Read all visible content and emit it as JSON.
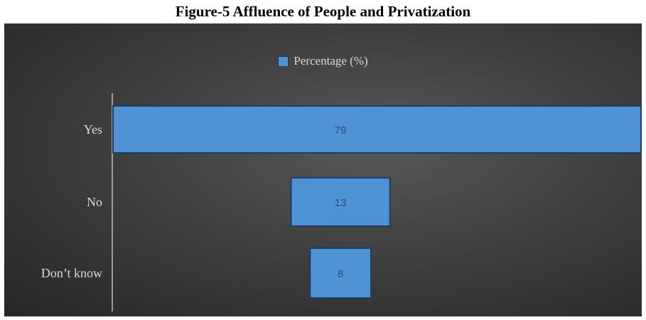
{
  "figure_title": "Figure-5 Affluence of People and Privatization",
  "colors": {
    "bar_fill": "#4f93d4",
    "bar_stroke": "#1e3d66",
    "axis": "#bfbfbf",
    "category_text": "#d9d9d9",
    "value_text": "#2c4f7a"
  },
  "chart_data": {
    "type": "bar",
    "orientation": "horizontal",
    "title": "",
    "xlabel": "",
    "ylabel": "",
    "categories": [
      "Yes",
      "No",
      "Don’t know"
    ],
    "series": [
      {
        "name": "Percentage (%)",
        "values": [
          79,
          13,
          8
        ],
        "data_labels": [
          "79",
          "13",
          "8"
        ]
      }
    ],
    "xlim": [
      -60,
      79
    ],
    "grid": false,
    "legend": "top-center"
  }
}
